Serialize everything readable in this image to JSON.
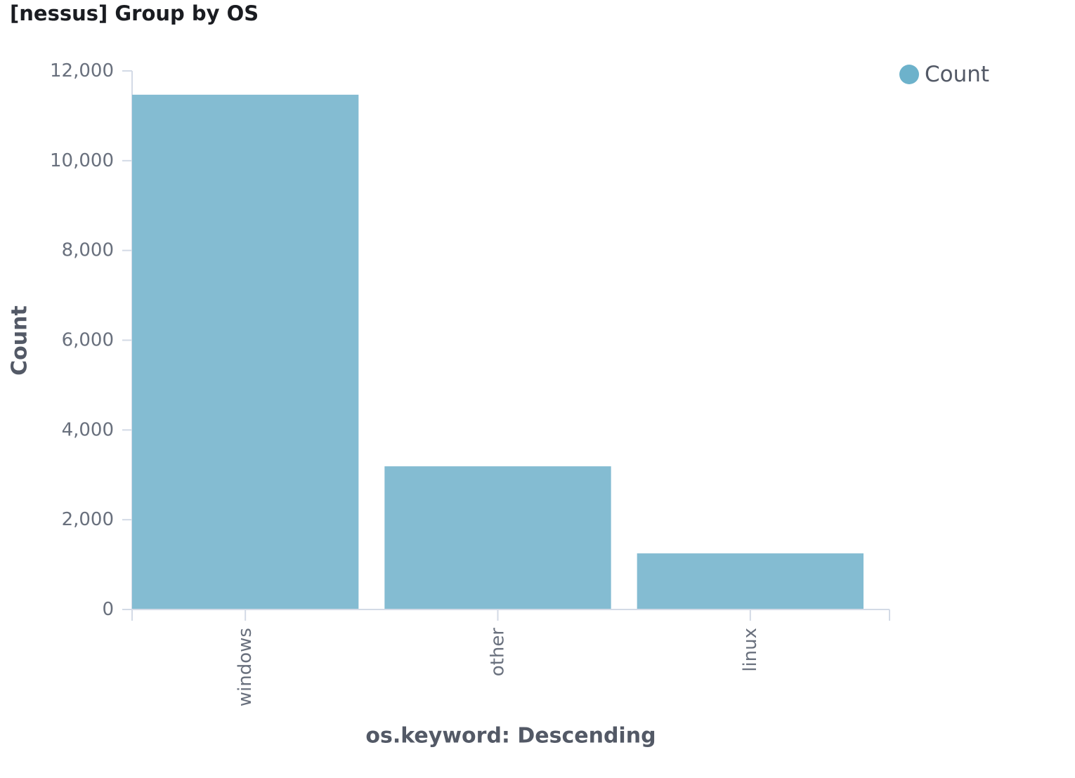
{
  "panel": {
    "title": "[nessus] Group by OS"
  },
  "chart_data": {
    "type": "bar",
    "title": "[nessus] Group by OS",
    "categories": [
      "windows",
      "other",
      "linux"
    ],
    "series": [
      {
        "name": "Count",
        "values": [
          11470,
          3190,
          1250
        ]
      }
    ],
    "xlabel": "os.keyword: Descending",
    "ylabel": "Count",
    "ylim": [
      0,
      12000
    ],
    "yticks": [
      0,
      2000,
      4000,
      6000,
      8000,
      10000,
      12000
    ],
    "ytick_labels": [
      "0",
      "2,000",
      "4,000",
      "6,000",
      "8,000",
      "10,000",
      "12,000"
    ],
    "legend": {
      "position": "top-right",
      "entries": [
        "Count"
      ]
    },
    "grid": false,
    "colors": {
      "bar": "#84bcd2",
      "legend_marker": "#6db2cb",
      "axis": "#d3dae6"
    }
  }
}
